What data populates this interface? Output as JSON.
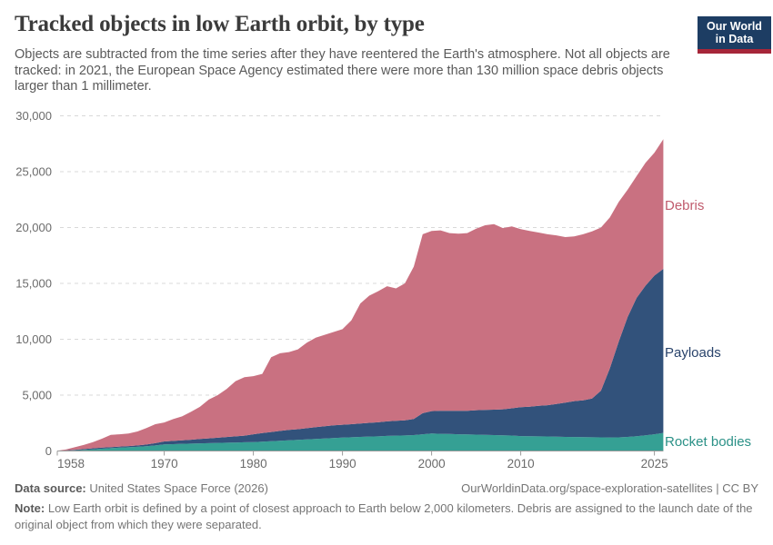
{
  "header": {
    "title": "Tracked objects in low Earth orbit, by type",
    "subtitle": "Objects are subtracted from the time series after they have reentered the Earth's atmosphere. Not all objects are tracked: in 2021, the European Space Agency estimated there were more than 130 million space debris objects larger than 1 millimeter.",
    "logo": {
      "line1": "Our World",
      "line2": "in Data",
      "bg_color": "#1d3d63",
      "bar_color": "#a62639"
    }
  },
  "chart_data": {
    "type": "area",
    "stacked": true,
    "title": "Tracked objects in low Earth orbit, by type",
    "xlabel": "",
    "ylabel": "",
    "grid": "horizontal-dashed",
    "legend_position": "right-edge-labels",
    "ylim": [
      0,
      30000
    ],
    "y_ticks": {
      "values": [
        0,
        5000,
        10000,
        15000,
        20000,
        25000,
        30000
      ],
      "labels": [
        "0",
        "5,000",
        "10,000",
        "15,000",
        "20,000",
        "25,000",
        "30,000"
      ]
    },
    "x_ticks": [
      1958,
      1970,
      1980,
      1990,
      2000,
      2010,
      2025
    ],
    "x": [
      1958,
      1959,
      1960,
      1961,
      1962,
      1963,
      1964,
      1965,
      1966,
      1967,
      1968,
      1969,
      1970,
      1971,
      1972,
      1973,
      1974,
      1975,
      1976,
      1977,
      1978,
      1979,
      1980,
      1981,
      1982,
      1983,
      1984,
      1985,
      1986,
      1987,
      1988,
      1989,
      1990,
      1991,
      1992,
      1993,
      1994,
      1995,
      1996,
      1997,
      1998,
      1999,
      2000,
      2001,
      2002,
      2003,
      2004,
      2005,
      2006,
      2007,
      2008,
      2009,
      2010,
      2011,
      2012,
      2013,
      2014,
      2015,
      2016,
      2017,
      2018,
      2019,
      2020,
      2021,
      2022,
      2023,
      2024,
      2025,
      2026
    ],
    "series": [
      {
        "name": "Rocket bodies",
        "color": "#35a094",
        "label_color": "#2b9187",
        "values": [
          5,
          30,
          60,
          100,
          150,
          200,
          250,
          300,
          330,
          370,
          420,
          500,
          585,
          610,
          640,
          660,
          680,
          700,
          720,
          740,
          760,
          780,
          800,
          840,
          880,
          920,
          960,
          1000,
          1040,
          1080,
          1120,
          1160,
          1200,
          1230,
          1260,
          1290,
          1310,
          1350,
          1370,
          1390,
          1420,
          1500,
          1560,
          1540,
          1520,
          1500,
          1480,
          1460,
          1440,
          1420,
          1400,
          1380,
          1330,
          1320,
          1310,
          1300,
          1280,
          1260,
          1250,
          1240,
          1230,
          1220,
          1210,
          1220,
          1260,
          1320,
          1400,
          1500,
          1620
        ]
      },
      {
        "name": "Payloads",
        "color": "#32527b",
        "label_color": "#29436b",
        "values": [
          5,
          30,
          50,
          70,
          90,
          110,
          100,
          100,
          110,
          130,
          160,
          200,
          270,
          290,
          320,
          350,
          390,
          430,
          470,
          510,
          550,
          590,
          700,
          760,
          820,
          880,
          930,
          950,
          1000,
          1050,
          1100,
          1140,
          1150,
          1170,
          1200,
          1230,
          1260,
          1300,
          1330,
          1360,
          1450,
          1880,
          2010,
          2060,
          2080,
          2100,
          2120,
          2190,
          2240,
          2280,
          2330,
          2440,
          2590,
          2640,
          2740,
          2800,
          2920,
          3070,
          3210,
          3290,
          3470,
          4180,
          6190,
          8580,
          10740,
          12380,
          13400,
          14200,
          14680
        ]
      },
      {
        "name": "Debris",
        "color": "#c97181",
        "label_color": "#c05b6d",
        "values": [
          10,
          90,
          240,
          380,
          560,
          790,
          1100,
          1100,
          1120,
          1250,
          1470,
          1700,
          1700,
          1950,
          2140,
          2490,
          2880,
          3470,
          3810,
          4300,
          4940,
          5230,
          5200,
          5300,
          6700,
          6950,
          6960,
          7150,
          7660,
          8020,
          8180,
          8350,
          8550,
          9300,
          10740,
          11380,
          11730,
          12100,
          11850,
          12250,
          13630,
          16020,
          16130,
          16150,
          15900,
          15850,
          15900,
          16250,
          16520,
          16600,
          16220,
          16280,
          15930,
          15740,
          15500,
          15300,
          15100,
          14820,
          14740,
          14870,
          14950,
          14600,
          13500,
          12500,
          11400,
          10900,
          11000,
          11000,
          11600
        ]
      }
    ]
  },
  "footer": {
    "source_label": "Data source:",
    "source_value": "United States Space Force (2026)",
    "rights": "OurWorldinData.org/space-exploration-satellites | CC BY",
    "note_label": "Note:",
    "note_value": "Low Earth orbit is defined by a point of closest approach to Earth below 2,000 kilometers. Debris are assigned to the launch date of the original object from which they were separated."
  }
}
